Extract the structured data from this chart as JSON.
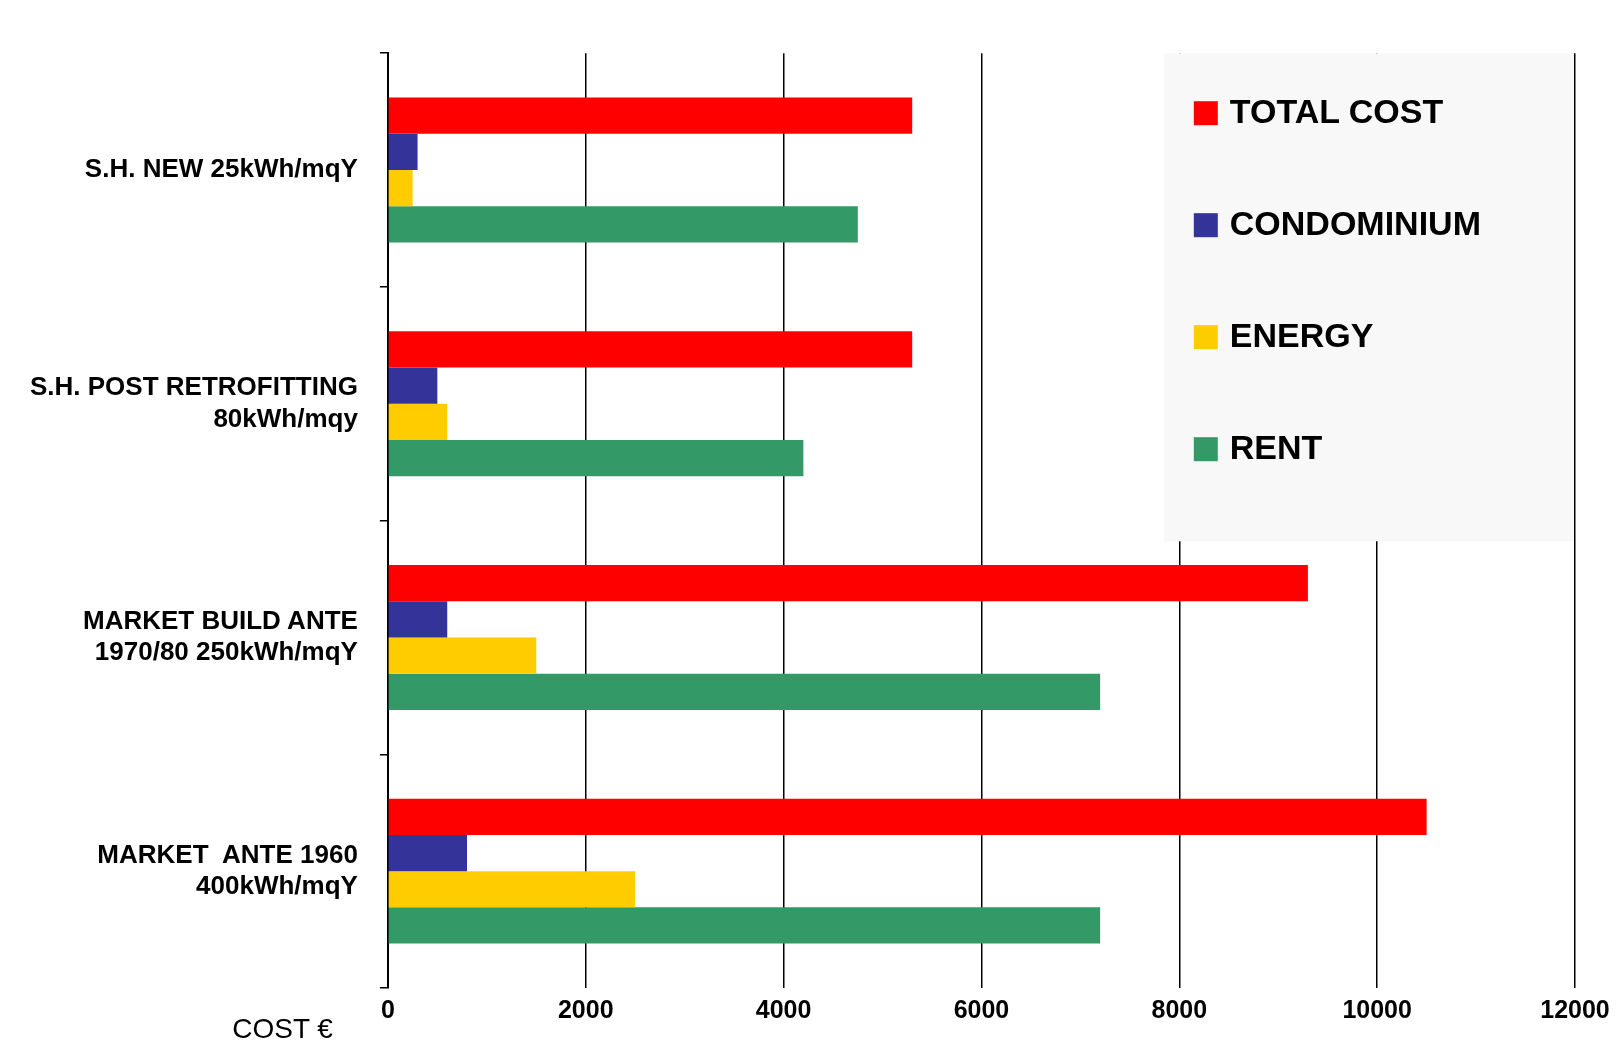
{
  "chart_data": {
    "type": "bar",
    "orientation": "horizontal",
    "xlabel": "COST €",
    "categories": [
      "S.H. NEW 25kWh/mqY",
      "S.H. POST RETROFITTING 80kWh/mqy",
      "MARKET BUILD ANTE 1970/80 250kWh/mqY",
      "MARKET  ANTE 1960 400kWh/mqY"
    ],
    "series": [
      {
        "name": "TOTAL COST",
        "color": "#ff0000",
        "values": [
          5300,
          5300,
          9300,
          10500
        ]
      },
      {
        "name": "CONDOMINIUM",
        "color": "#333399",
        "values": [
          300,
          500,
          600,
          800
        ]
      },
      {
        "name": "ENERGY",
        "color": "#ffcc00",
        "values": [
          250,
          600,
          1500,
          2500
        ]
      },
      {
        "name": "RENT",
        "color": "#339966",
        "values": [
          4750,
          4200,
          7200,
          7200
        ]
      }
    ],
    "xlim": [
      0,
      12000
    ],
    "xticks": [
      0,
      2000,
      4000,
      6000,
      8000,
      10000,
      12000
    ],
    "grid": "x",
    "legend": "top right"
  }
}
